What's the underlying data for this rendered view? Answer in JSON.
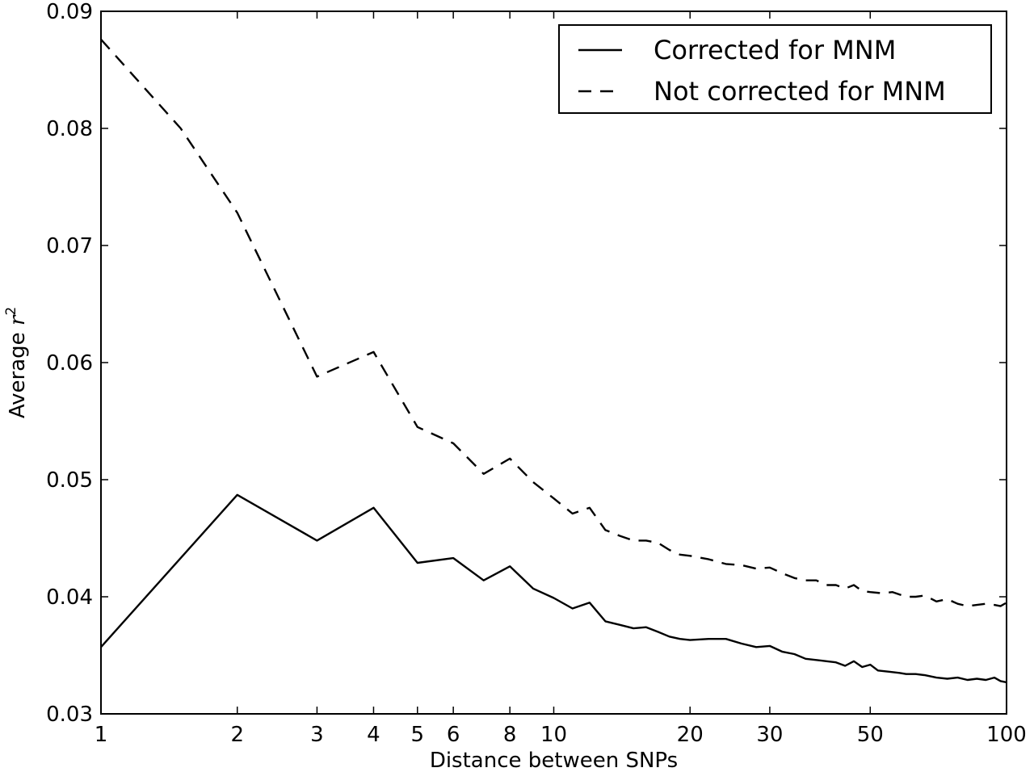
{
  "chart_data": {
    "type": "line",
    "xlabel": "Distance between SNPs",
    "ylabel_text": "Average ",
    "ylabel_var": "r",
    "ylabel_sup": "2",
    "xscale": "log",
    "xlim": [
      1,
      100
    ],
    "ylim": [
      0.03,
      0.09
    ],
    "x_ticks": [
      1,
      2,
      3,
      4,
      5,
      6,
      8,
      10,
      20,
      30,
      50,
      100
    ],
    "x_tick_labels": [
      "1",
      "2",
      "3",
      "4",
      "5",
      "6",
      "8",
      "10",
      "20",
      "30",
      "50",
      "100"
    ],
    "y_ticks": [
      0.03,
      0.04,
      0.05,
      0.06,
      0.07,
      0.08,
      0.09
    ],
    "y_tick_labels": [
      "0.03",
      "0.04",
      "0.05",
      "0.06",
      "0.07",
      "0.08",
      "0.09"
    ],
    "grid": false,
    "legend_position": "top-right",
    "series": [
      {
        "name": "Corrected for MNM",
        "style": "solid",
        "color": "#000000",
        "points": [
          [
            1,
            0.0357
          ],
          [
            2,
            0.0487
          ],
          [
            3,
            0.0448
          ],
          [
            4,
            0.0476
          ],
          [
            5,
            0.0429
          ],
          [
            6,
            0.0433
          ],
          [
            7,
            0.0414
          ],
          [
            8,
            0.0426
          ],
          [
            9,
            0.0407
          ],
          [
            10,
            0.0399
          ],
          [
            11,
            0.039
          ],
          [
            12,
            0.0395
          ],
          [
            13,
            0.0379
          ],
          [
            14,
            0.0376
          ],
          [
            15,
            0.0373
          ],
          [
            16,
            0.0374
          ],
          [
            17,
            0.037
          ],
          [
            18,
            0.0366
          ],
          [
            19,
            0.0364
          ],
          [
            20,
            0.0363
          ],
          [
            22,
            0.0364
          ],
          [
            24,
            0.0364
          ],
          [
            26,
            0.036
          ],
          [
            28,
            0.0357
          ],
          [
            30,
            0.0358
          ],
          [
            32,
            0.0353
          ],
          [
            34,
            0.0351
          ],
          [
            36,
            0.0347
          ],
          [
            38,
            0.0346
          ],
          [
            40,
            0.0345
          ],
          [
            42,
            0.0344
          ],
          [
            44,
            0.0341
          ],
          [
            46,
            0.0345
          ],
          [
            48,
            0.034
          ],
          [
            50,
            0.0342
          ],
          [
            52,
            0.0337
          ],
          [
            55,
            0.0336
          ],
          [
            58,
            0.0335
          ],
          [
            60,
            0.0334
          ],
          [
            63,
            0.0334
          ],
          [
            66,
            0.0333
          ],
          [
            70,
            0.0331
          ],
          [
            74,
            0.033
          ],
          [
            78,
            0.0331
          ],
          [
            82,
            0.0329
          ],
          [
            86,
            0.033
          ],
          [
            90,
            0.0329
          ],
          [
            94,
            0.0331
          ],
          [
            97,
            0.0328
          ],
          [
            100,
            0.0327
          ]
        ]
      },
      {
        "name": "Not corrected for MNM",
        "style": "dashed",
        "color": "#000000",
        "points": [
          [
            1,
            0.0876
          ],
          [
            1.5,
            0.08
          ],
          [
            2,
            0.0728
          ],
          [
            3,
            0.0588
          ],
          [
            4,
            0.0609
          ],
          [
            5,
            0.0545
          ],
          [
            6,
            0.0531
          ],
          [
            7,
            0.0505
          ],
          [
            8,
            0.0518
          ],
          [
            9,
            0.0498
          ],
          [
            10,
            0.0484
          ],
          [
            11,
            0.0471
          ],
          [
            12,
            0.0476
          ],
          [
            13,
            0.0457
          ],
          [
            14,
            0.0452
          ],
          [
            15,
            0.0448
          ],
          [
            16,
            0.0448
          ],
          [
            17,
            0.0446
          ],
          [
            18,
            0.044
          ],
          [
            19,
            0.0436
          ],
          [
            20,
            0.0435
          ],
          [
            22,
            0.0432
          ],
          [
            24,
            0.0428
          ],
          [
            26,
            0.0427
          ],
          [
            28,
            0.0424
          ],
          [
            30,
            0.0425
          ],
          [
            32,
            0.042
          ],
          [
            34,
            0.0416
          ],
          [
            36,
            0.0414
          ],
          [
            38,
            0.0414
          ],
          [
            40,
            0.041
          ],
          [
            42,
            0.041
          ],
          [
            44,
            0.0407
          ],
          [
            46,
            0.041
          ],
          [
            48,
            0.0405
          ],
          [
            50,
            0.0404
          ],
          [
            53,
            0.0403
          ],
          [
            56,
            0.0404
          ],
          [
            60,
            0.04
          ],
          [
            63,
            0.04
          ],
          [
            66,
            0.0401
          ],
          [
            70,
            0.0396
          ],
          [
            74,
            0.0398
          ],
          [
            78,
            0.0394
          ],
          [
            82,
            0.0392
          ],
          [
            86,
            0.0393
          ],
          [
            90,
            0.0394
          ],
          [
            94,
            0.0393
          ],
          [
            97,
            0.0392
          ],
          [
            100,
            0.0395
          ]
        ]
      }
    ]
  }
}
